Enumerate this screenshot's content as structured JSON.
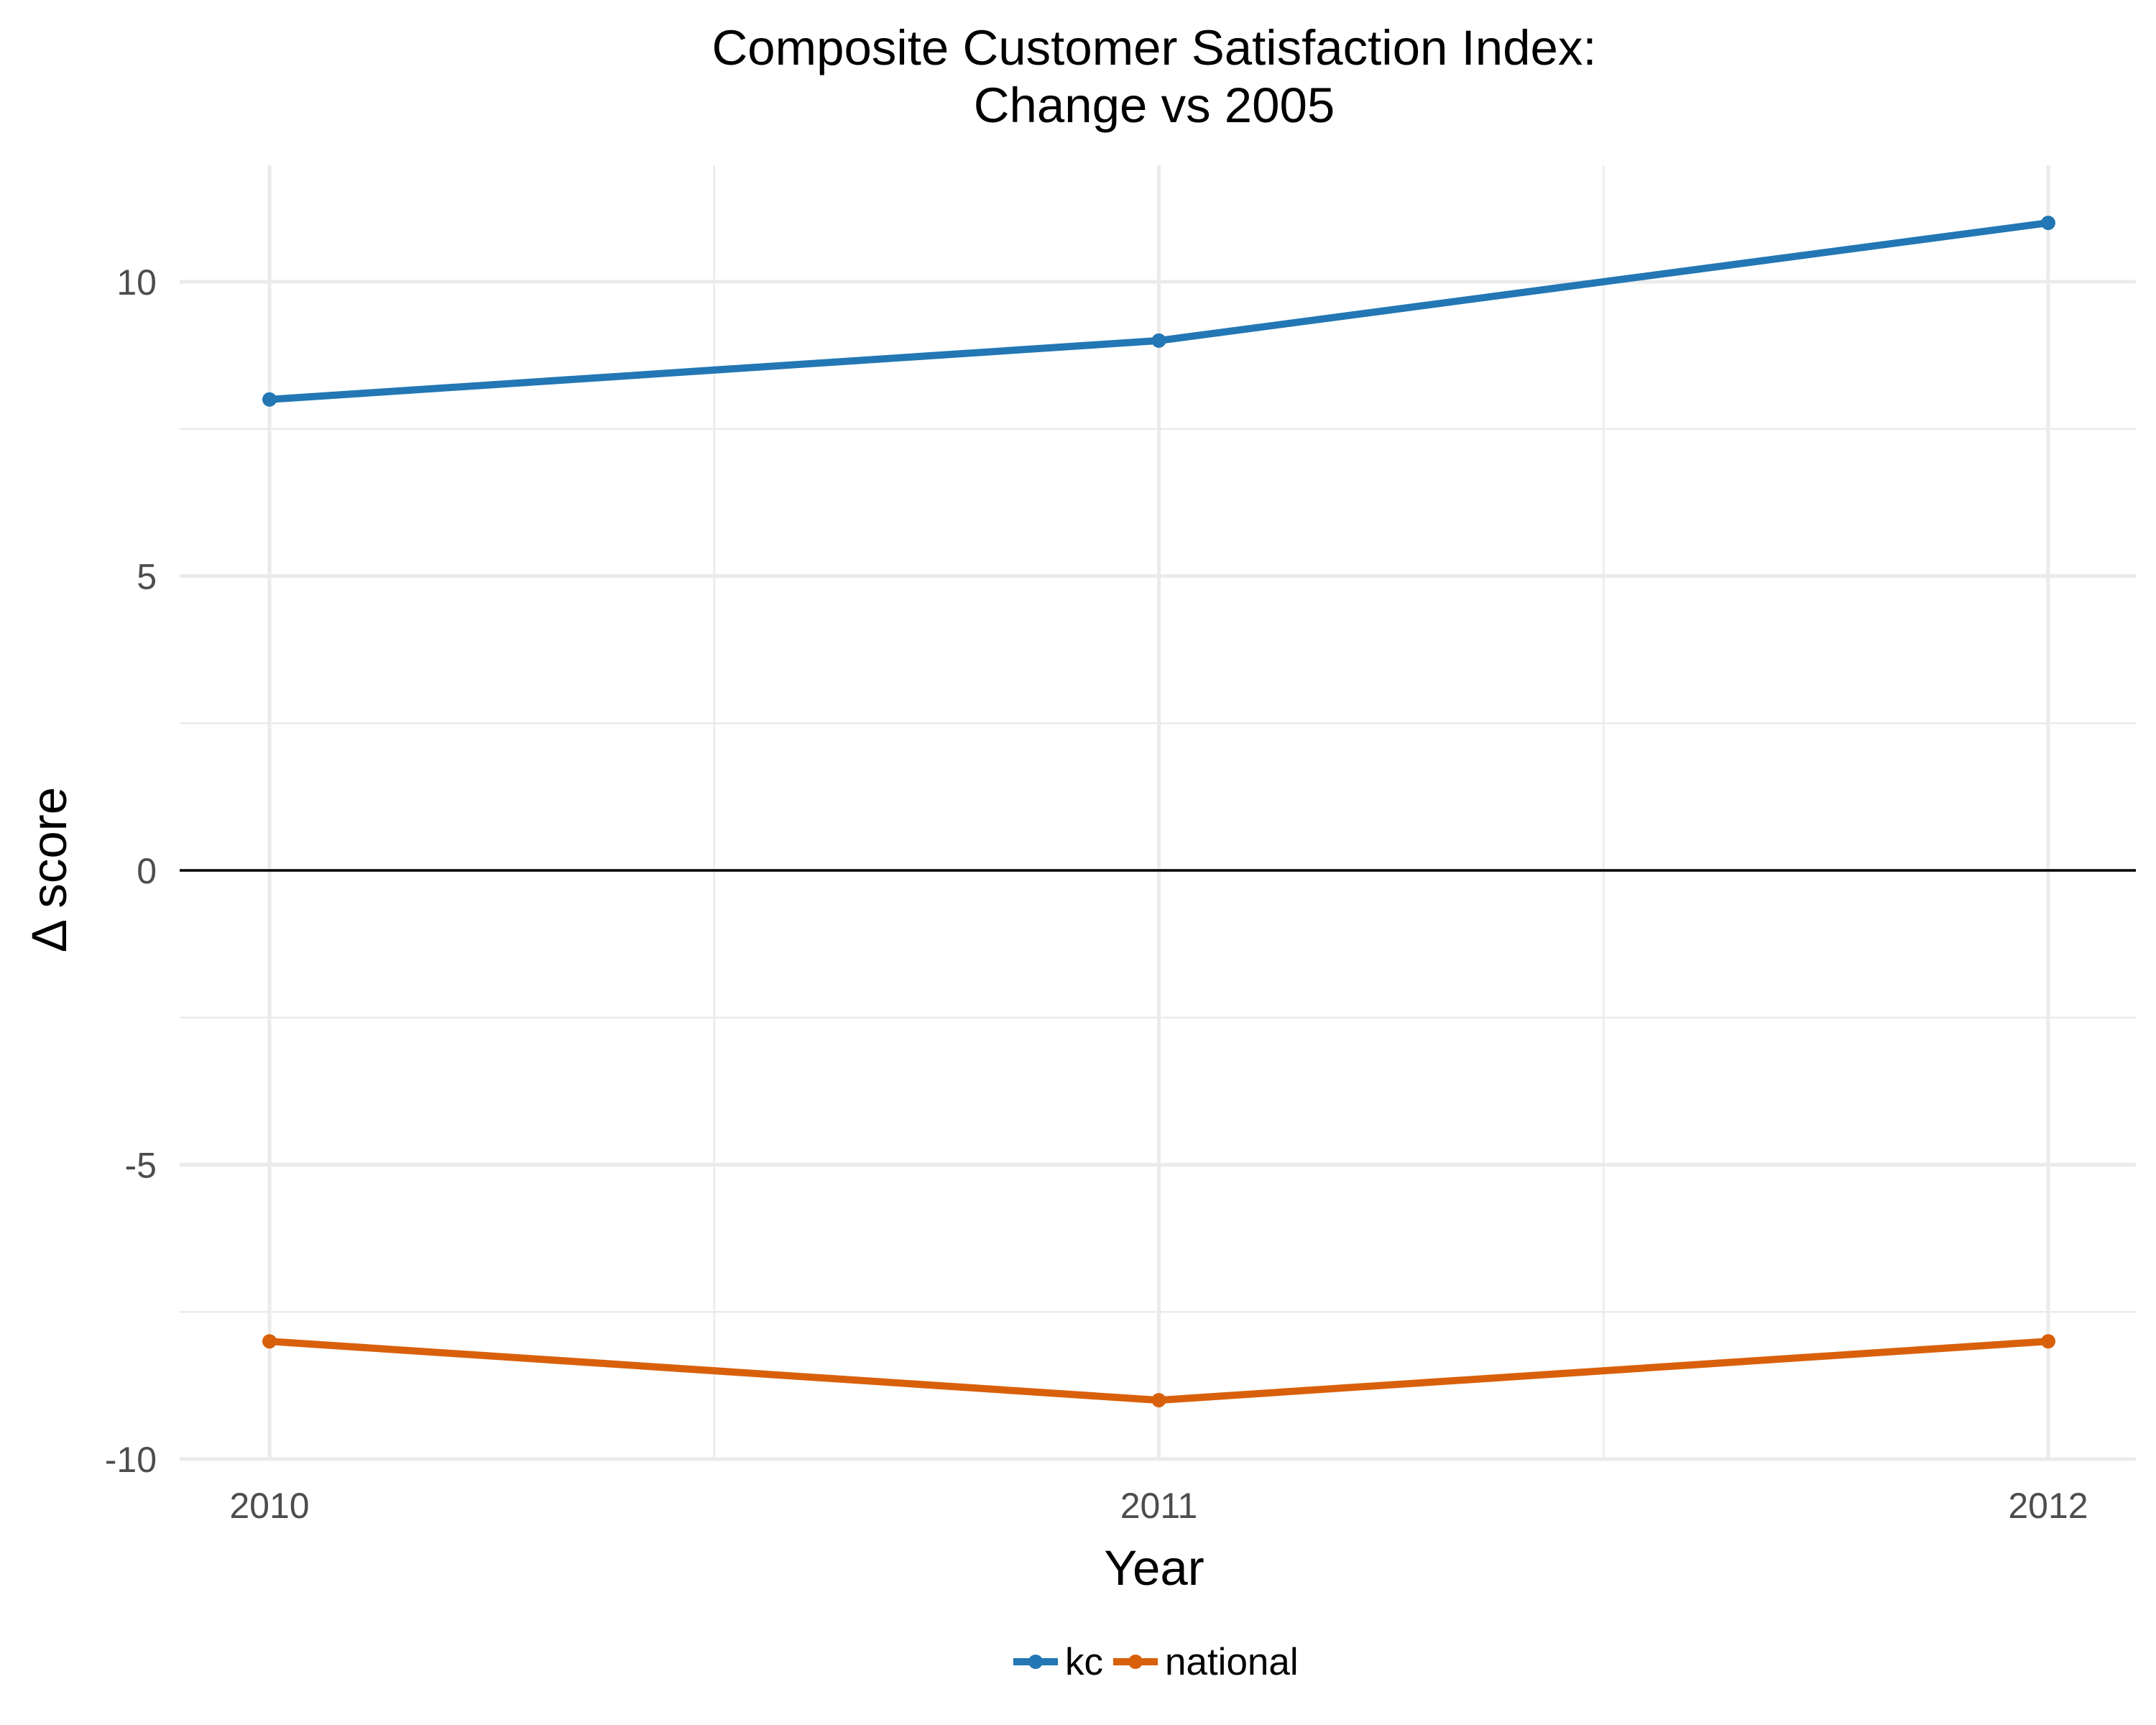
{
  "chart_data": {
    "type": "line",
    "title": [
      "Composite Customer Satisfaction Index:",
      "Change vs 2005"
    ],
    "xlabel": "Year",
    "ylabel": "Δ score",
    "x": [
      2010,
      2011,
      2012
    ],
    "x_tick_labels": [
      "2010",
      "2011",
      "2012"
    ],
    "ylim": [
      -10,
      12
    ],
    "y_ticks": [
      -10,
      -5,
      0,
      5,
      10
    ],
    "y_tick_labels": [
      "-10",
      "-5",
      "0",
      "5",
      "10"
    ],
    "reference_line_y": 0,
    "grid": true,
    "legend_position": "bottom",
    "series": [
      {
        "name": "kc",
        "color": "#2277b4",
        "values": [
          8,
          9,
          11
        ]
      },
      {
        "name": "national",
        "color": "#d9600b",
        "values": [
          -8,
          -9,
          -8
        ]
      }
    ]
  }
}
